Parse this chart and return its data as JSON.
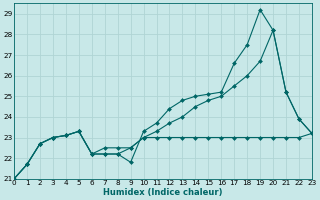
{
  "xlabel": "Humidex (Indice chaleur)",
  "background_color": "#c8e8e8",
  "grid_color": "#b0d4d4",
  "line_color": "#006666",
  "series": {
    "line1": {
      "x": [
        0,
        1,
        2,
        3,
        4,
        5,
        6,
        7,
        8,
        9,
        10,
        11,
        12,
        13,
        14,
        15,
        16,
        17,
        18,
        19,
        20,
        21,
        22,
        23
      ],
      "y": [
        21.0,
        21.7,
        22.7,
        23.0,
        23.1,
        23.3,
        22.2,
        22.2,
        22.2,
        21.8,
        23.3,
        23.7,
        24.4,
        24.8,
        25.0,
        25.1,
        25.2,
        26.6,
        27.5,
        29.2,
        28.2,
        25.2,
        23.9,
        23.2
      ]
    },
    "line2": {
      "x": [
        0,
        1,
        2,
        3,
        4,
        5,
        6,
        7,
        8,
        9,
        10,
        11,
        12,
        13,
        14,
        15,
        16,
        17,
        18,
        19,
        20,
        21,
        22,
        23
      ],
      "y": [
        21.0,
        21.7,
        22.7,
        23.0,
        23.1,
        23.3,
        22.2,
        22.5,
        22.5,
        22.5,
        23.0,
        23.3,
        23.7,
        24.0,
        24.5,
        24.8,
        25.0,
        25.5,
        26.0,
        26.7,
        28.2,
        25.2,
        23.9,
        23.2
      ]
    },
    "line3": {
      "x": [
        0,
        1,
        2,
        3,
        4,
        5,
        6,
        7,
        8,
        9,
        10,
        11,
        12,
        13,
        14,
        15,
        16,
        17,
        18,
        19,
        20,
        21,
        22,
        23
      ],
      "y": [
        21.0,
        21.7,
        22.7,
        23.0,
        23.1,
        23.3,
        22.2,
        22.2,
        22.2,
        22.5,
        23.0,
        23.0,
        23.0,
        23.0,
        23.0,
        23.0,
        23.0,
        23.0,
        23.0,
        23.0,
        23.0,
        23.0,
        23.0,
        23.2
      ]
    }
  },
  "xlim": [
    0,
    23
  ],
  "ylim": [
    21.0,
    29.5
  ],
  "yticks": [
    21,
    22,
    23,
    24,
    25,
    26,
    27,
    28,
    29
  ],
  "xticks": [
    0,
    1,
    2,
    3,
    4,
    5,
    6,
    7,
    8,
    9,
    10,
    11,
    12,
    13,
    14,
    15,
    16,
    17,
    18,
    19,
    20,
    21,
    22,
    23
  ],
  "xlabel_fontsize": 6.0,
  "tick_fontsize": 5.2
}
